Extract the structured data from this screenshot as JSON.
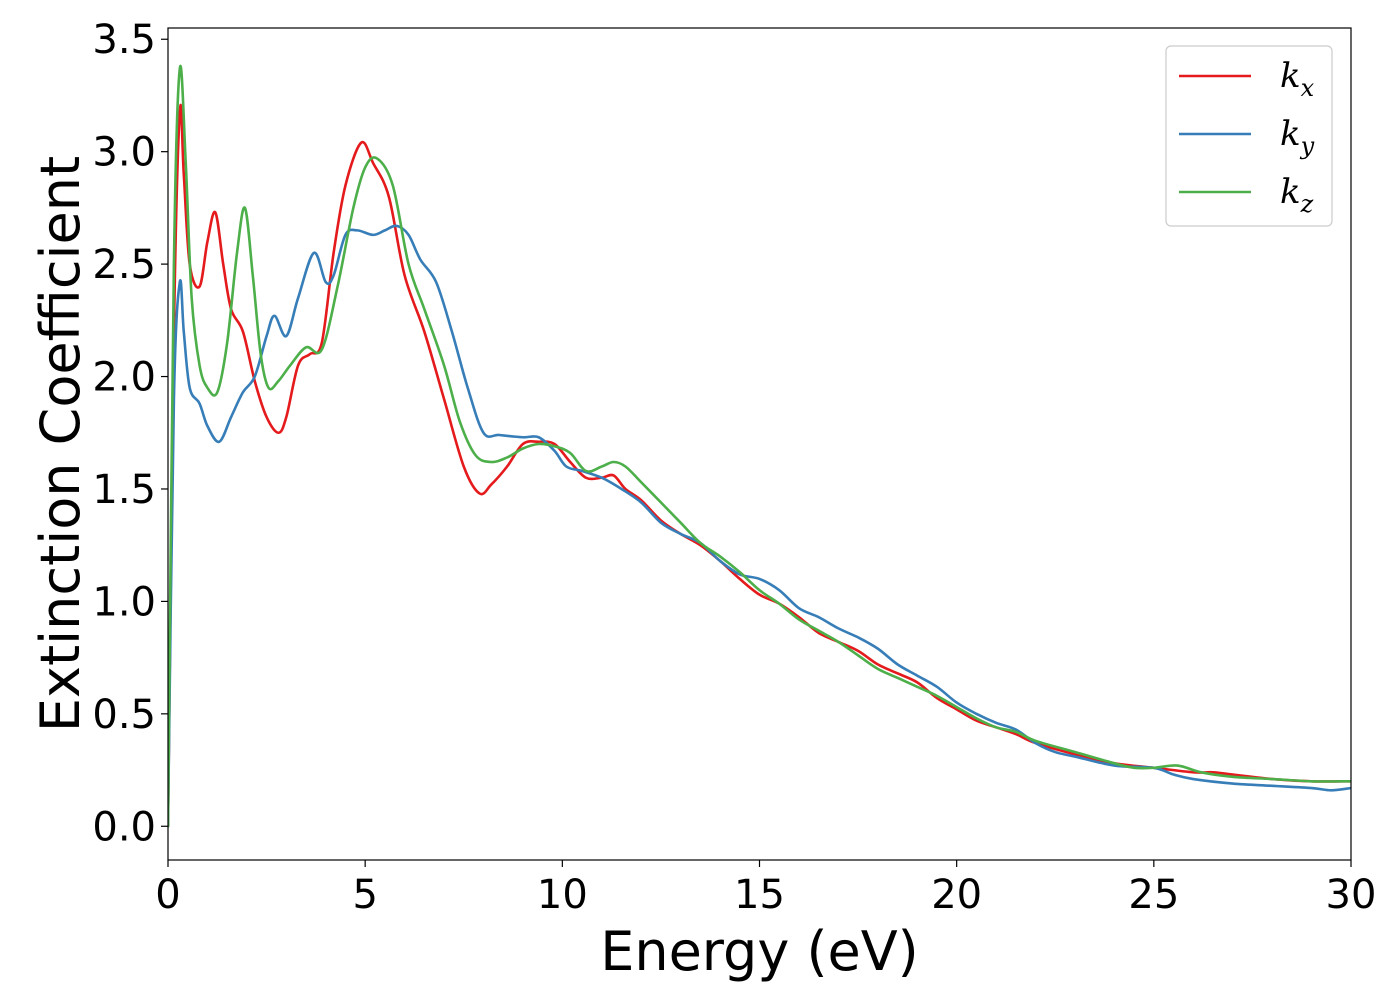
{
  "chart_data": {
    "type": "line",
    "xlabel": "Energy (eV)",
    "ylabel": "Extinction Coefficient",
    "xlim": [
      0,
      30
    ],
    "ylim": [
      -0.15,
      3.55
    ],
    "xticks": [
      0,
      5,
      10,
      15,
      20,
      25,
      30
    ],
    "xtick_labels": [
      "0",
      "5",
      "10",
      "15",
      "20",
      "25",
      "30"
    ],
    "yticks": [
      0.0,
      0.5,
      1.0,
      1.5,
      2.0,
      2.5,
      3.0,
      3.5
    ],
    "ytick_labels": [
      "0.0",
      "0.5",
      "1.0",
      "1.5",
      "2.0",
      "2.5",
      "3.0",
      "3.5"
    ],
    "grid": false,
    "legend_position": "top-right",
    "series": [
      {
        "name": "k",
        "subscript": "x",
        "color": "#e41a1c",
        "x": [
          0.0,
          0.15,
          0.3,
          0.4,
          0.55,
          0.8,
          1.0,
          1.2,
          1.4,
          1.6,
          1.9,
          2.2,
          2.5,
          2.8,
          3.0,
          3.3,
          3.6,
          3.9,
          4.2,
          4.5,
          4.9,
          5.2,
          5.6,
          6.0,
          6.5,
          7.0,
          7.5,
          7.9,
          8.2,
          8.6,
          9.0,
          9.4,
          9.8,
          10.2,
          10.6,
          11.0,
          11.3,
          11.6,
          12.0,
          12.5,
          13.0,
          13.5,
          14.0,
          14.5,
          15.0,
          15.5,
          16.0,
          16.5,
          17.0,
          17.5,
          18.0,
          18.5,
          19.0,
          19.5,
          20.0,
          20.5,
          21.0,
          21.5,
          22.0,
          23.0,
          24.0,
          25.0,
          26.0,
          26.5,
          27.0,
          28.0,
          29.0,
          30.0
        ],
        "values": [
          0.0,
          2.2,
          3.18,
          2.9,
          2.5,
          2.4,
          2.6,
          2.73,
          2.5,
          2.3,
          2.2,
          1.98,
          1.82,
          1.75,
          1.82,
          2.05,
          2.1,
          2.15,
          2.55,
          2.85,
          3.04,
          2.95,
          2.8,
          2.45,
          2.2,
          1.9,
          1.6,
          1.48,
          1.52,
          1.6,
          1.7,
          1.71,
          1.7,
          1.62,
          1.55,
          1.55,
          1.56,
          1.5,
          1.45,
          1.36,
          1.3,
          1.25,
          1.18,
          1.1,
          1.03,
          0.99,
          0.93,
          0.86,
          0.82,
          0.78,
          0.72,
          0.68,
          0.64,
          0.57,
          0.52,
          0.47,
          0.44,
          0.41,
          0.37,
          0.32,
          0.28,
          0.26,
          0.24,
          0.24,
          0.23,
          0.21,
          0.2,
          0.2
        ]
      },
      {
        "name": "k",
        "subscript": "y",
        "color": "#377eb8",
        "x": [
          0.0,
          0.15,
          0.3,
          0.4,
          0.55,
          0.8,
          1.0,
          1.3,
          1.6,
          1.9,
          2.2,
          2.5,
          2.7,
          3.0,
          3.3,
          3.7,
          4.0,
          4.2,
          4.5,
          4.8,
          5.2,
          5.5,
          5.8,
          6.1,
          6.4,
          6.8,
          7.2,
          7.6,
          8.0,
          8.4,
          9.0,
          9.4,
          9.8,
          10.1,
          10.5,
          11.0,
          11.5,
          12.0,
          12.5,
          13.0,
          13.5,
          14.0,
          14.5,
          15.0,
          15.5,
          16.0,
          16.5,
          17.0,
          17.5,
          18.0,
          18.5,
          19.0,
          19.5,
          20.0,
          20.5,
          21.0,
          21.5,
          22.0,
          22.5,
          23.0,
          24.0,
          25.0,
          25.5,
          26.0,
          27.0,
          28.0,
          29.0,
          29.5,
          30.0
        ],
        "values": [
          0.0,
          1.9,
          2.42,
          2.2,
          1.95,
          1.88,
          1.78,
          1.71,
          1.82,
          1.93,
          2.0,
          2.18,
          2.27,
          2.18,
          2.35,
          2.55,
          2.42,
          2.45,
          2.63,
          2.65,
          2.63,
          2.65,
          2.67,
          2.63,
          2.52,
          2.42,
          2.2,
          1.95,
          1.75,
          1.74,
          1.73,
          1.73,
          1.67,
          1.6,
          1.58,
          1.55,
          1.5,
          1.44,
          1.35,
          1.3,
          1.26,
          1.18,
          1.12,
          1.1,
          1.05,
          0.97,
          0.93,
          0.88,
          0.84,
          0.79,
          0.72,
          0.67,
          0.62,
          0.55,
          0.5,
          0.46,
          0.43,
          0.37,
          0.33,
          0.31,
          0.27,
          0.26,
          0.23,
          0.21,
          0.19,
          0.18,
          0.17,
          0.16,
          0.17
        ]
      },
      {
        "name": "k",
        "subscript": "z",
        "color": "#4daf4a",
        "x": [
          0.0,
          0.15,
          0.3,
          0.45,
          0.6,
          0.8,
          1.0,
          1.25,
          1.5,
          1.75,
          1.95,
          2.15,
          2.35,
          2.55,
          2.8,
          3.1,
          3.5,
          3.9,
          4.3,
          4.7,
          5.0,
          5.3,
          5.7,
          6.1,
          6.5,
          7.0,
          7.4,
          7.8,
          8.2,
          8.6,
          9.0,
          9.4,
          9.8,
          10.2,
          10.6,
          11.0,
          11.3,
          11.6,
          12.0,
          12.5,
          13.0,
          13.5,
          14.0,
          14.5,
          15.0,
          15.5,
          16.0,
          16.5,
          17.0,
          17.5,
          18.0,
          18.5,
          19.0,
          19.5,
          20.0,
          20.5,
          21.0,
          21.5,
          22.0,
          23.0,
          24.0,
          24.5,
          25.0,
          25.6,
          26.2,
          27.0,
          28.0,
          29.0,
          30.0
        ],
        "values": [
          0.0,
          2.5,
          3.37,
          2.95,
          2.35,
          2.05,
          1.95,
          1.93,
          2.15,
          2.55,
          2.75,
          2.45,
          2.1,
          1.95,
          1.98,
          2.05,
          2.13,
          2.12,
          2.4,
          2.75,
          2.93,
          2.97,
          2.85,
          2.5,
          2.3,
          2.05,
          1.8,
          1.65,
          1.62,
          1.64,
          1.68,
          1.7,
          1.69,
          1.66,
          1.58,
          1.6,
          1.62,
          1.6,
          1.53,
          1.44,
          1.35,
          1.26,
          1.2,
          1.13,
          1.05,
          0.99,
          0.92,
          0.87,
          0.82,
          0.76,
          0.7,
          0.66,
          0.62,
          0.58,
          0.53,
          0.48,
          0.44,
          0.42,
          0.38,
          0.33,
          0.28,
          0.26,
          0.26,
          0.27,
          0.24,
          0.22,
          0.21,
          0.2,
          0.2
        ]
      }
    ]
  }
}
